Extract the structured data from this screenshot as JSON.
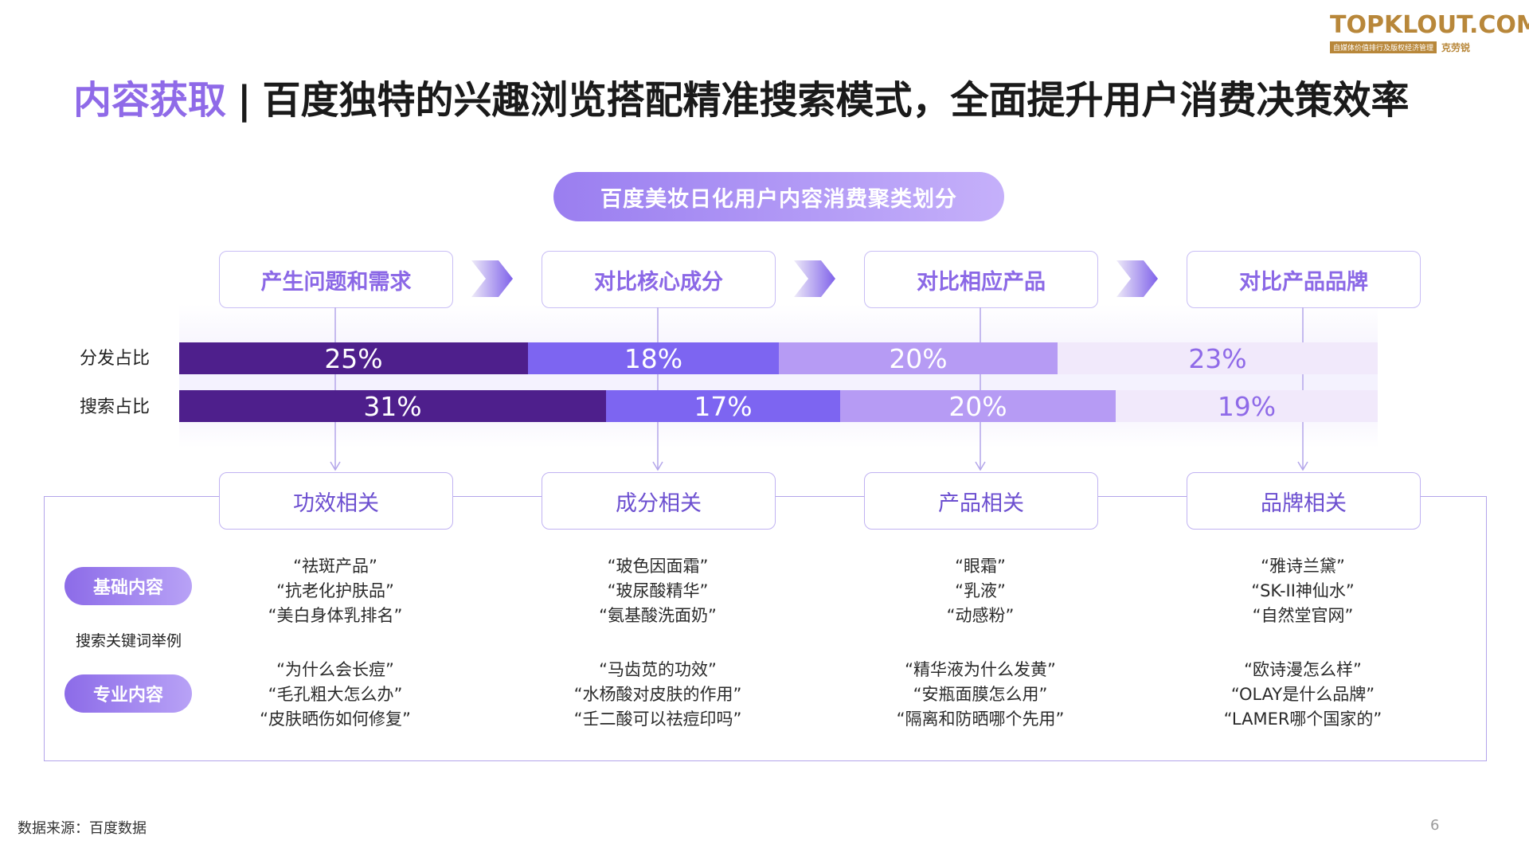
{
  "logo": {
    "brand": "TOPKLOUT.COM",
    "tagline": "自媒体价值排行及版权经济管理",
    "cn_name": "克劳锐"
  },
  "title": {
    "accent": "内容获取",
    "separator": "|",
    "text": "百度独特的兴趣浏览搭配精准搜索模式，全面提升用户消费决策效率"
  },
  "chart_data": {
    "type": "bar",
    "title": "百度美妆日化用户内容消费聚类划分",
    "stacked": true,
    "orientation": "horizontal",
    "stages": [
      "产生问题和需求",
      "对比核心成分",
      "对比相应产品",
      "对比产品品牌"
    ],
    "categories": [
      "功效相关",
      "成分相关",
      "产品相关",
      "品牌相关"
    ],
    "series": [
      {
        "name": "分发占比",
        "values": [
          25,
          18,
          20,
          23
        ],
        "labels": [
          "25%",
          "18%",
          "20%",
          "23%"
        ]
      },
      {
        "name": "搜索占比",
        "values": [
          31,
          17,
          20,
          19
        ],
        "labels": [
          "31%",
          "17%",
          "20%",
          "19%"
        ]
      }
    ],
    "segment_colors": [
      "#4e1f8c",
      "#7d65f1",
      "#b69bf4",
      "#f1e9fb"
    ],
    "label_colors": [
      "#ffffff",
      "#ffffff",
      "#ffffff",
      "#8f6ae8"
    ]
  },
  "keywords": {
    "row_label": "搜索关键词举例",
    "basic_label": "基础内容",
    "pro_label": "专业内容",
    "basic": [
      [
        "“祛斑产品”",
        "“抗老化护肤品”",
        "“美白身体乳排名”"
      ],
      [
        "“玻色因面霜”",
        "“玻尿酸精华”",
        "“氨基酸洗面奶”"
      ],
      [
        "“眼霜”",
        "“乳液”",
        "“动感粉”"
      ],
      [
        "“雅诗兰黛”",
        "“SK-II神仙水”",
        "“自然堂官网”"
      ]
    ],
    "pro": [
      [
        "“为什么会长痘”",
        "“毛孔粗大怎么办”",
        "“皮肤晒伤如何修复”"
      ],
      [
        "“马齿苋的功效”",
        "“水杨酸对皮肤的作用”",
        "“壬二酸可以祛痘印吗”"
      ],
      [
        "“精华液为什么发黄”",
        "“安瓶面膜怎么用”",
        "“隔离和防晒哪个先用”"
      ],
      [
        "“欧诗漫怎么样”",
        "“OLAY是什么品牌”",
        "“LAMER哪个国家的”"
      ]
    ]
  },
  "footer": {
    "source": "数据来源：百度数据",
    "page": "6"
  }
}
